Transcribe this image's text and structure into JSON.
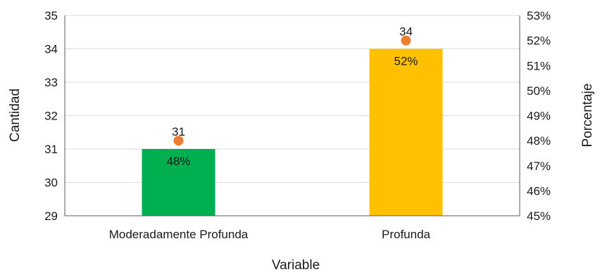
{
  "chart_data": {
    "type": "bar",
    "title": "",
    "xlabel": "Variable",
    "ylabel": "Cantidad",
    "y2label": "Porcentaje",
    "categories": [
      "Moderadamente Profunda",
      "Profunda"
    ],
    "series": [
      {
        "values": [
          31,
          34
        ],
        "colors": [
          "#00b050",
          "#ffc000"
        ],
        "axis": "left"
      },
      {
        "values": [
          0.48,
          0.52
        ],
        "value_labels": [
          "48%",
          "52%"
        ],
        "marker_color": "#ed7d31",
        "axis": "right"
      }
    ],
    "value_labels": [
      "31",
      "34"
    ],
    "ylim": [
      29,
      35
    ],
    "y_ticks": [
      "29",
      "30",
      "31",
      "32",
      "33",
      "34",
      "35"
    ],
    "y2lim": [
      0.45,
      0.53
    ],
    "y2_ticks": [
      "45%",
      "46%",
      "47%",
      "48%",
      "49%",
      "50%",
      "51%",
      "52%",
      "53%"
    ],
    "grid": true,
    "legend": "none"
  }
}
